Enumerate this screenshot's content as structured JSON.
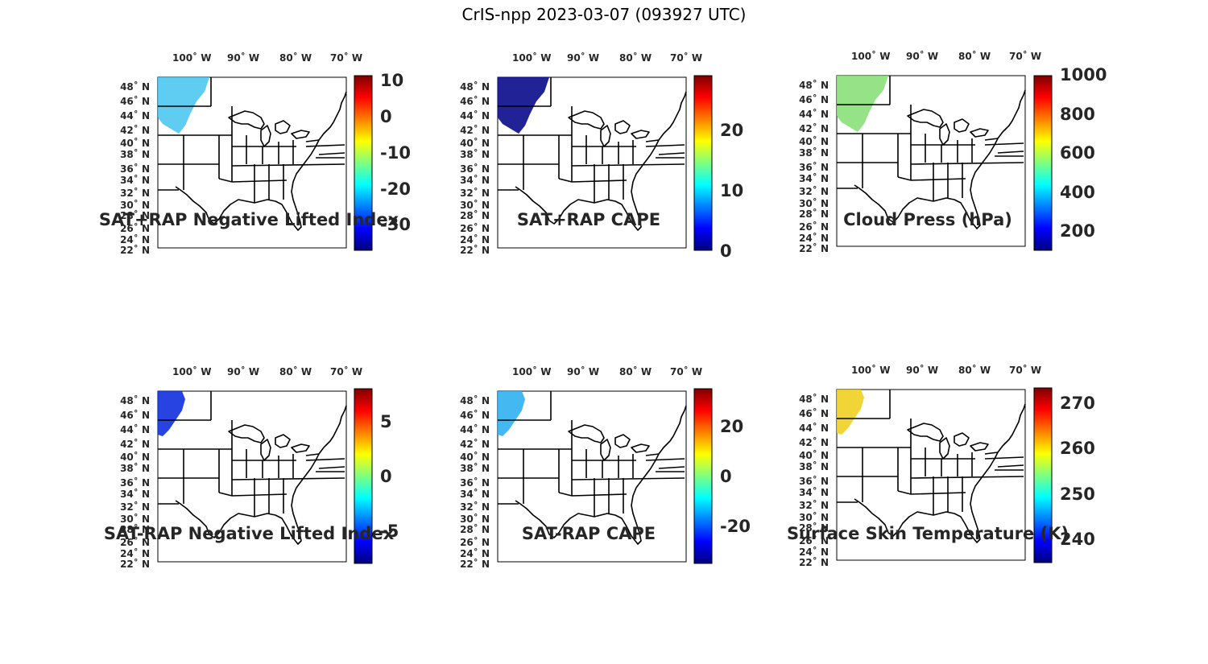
{
  "title": "CrIS-npp 2023-03-07 (093927 UTC)",
  "lon_labels": [
    "100˚ W",
    "90˚ W",
    "80˚ W",
    "70˚ W"
  ],
  "lat_labels": [
    "48˚ N",
    "46˚ N",
    "44˚ N",
    "42˚ N",
    "40˚ N",
    "38˚ N",
    "36˚ N",
    "34˚ N",
    "32˚ N",
    "30˚ N",
    "28˚ N",
    "26˚ N",
    "24˚ N",
    "22˚ N"
  ],
  "colormap": "jet",
  "panels": [
    {
      "title": "SAT+RAP Negative Lifted Index",
      "cbar_ticks": [
        "10",
        "0",
        "-10",
        "-20",
        "-30"
      ],
      "data_extent": "upper-northwest",
      "dominant_color": "#4ec6f0"
    },
    {
      "title": "SAT+RAP CAPE",
      "cbar_ticks": [
        "20",
        "10",
        "0"
      ],
      "data_extent": "upper-northwest",
      "dominant_color": "#0a0a8c"
    },
    {
      "title": "Cloud Press (hPa)",
      "cbar_ticks": [
        "1000",
        "800",
        "600",
        "400",
        "200"
      ],
      "data_extent": "upper-northwest",
      "dominant_color": "#8adf7a"
    },
    {
      "title": "SAT-RAP Negative Lifted Index",
      "cbar_ticks": [
        "5",
        "0",
        "-5"
      ],
      "data_extent": "northwest-edge",
      "dominant_color": "#1030e0"
    },
    {
      "title": "SAT-RAP CAPE",
      "cbar_ticks": [
        "20",
        "0",
        "-20"
      ],
      "data_extent": "northwest-edge",
      "dominant_color": "#30b0f0"
    },
    {
      "title": "Surface Skin Temperature (K)",
      "cbar_ticks": [
        "270",
        "260",
        "250",
        "240"
      ],
      "data_extent": "northwest-edge",
      "dominant_color": "#f0d020"
    }
  ]
}
